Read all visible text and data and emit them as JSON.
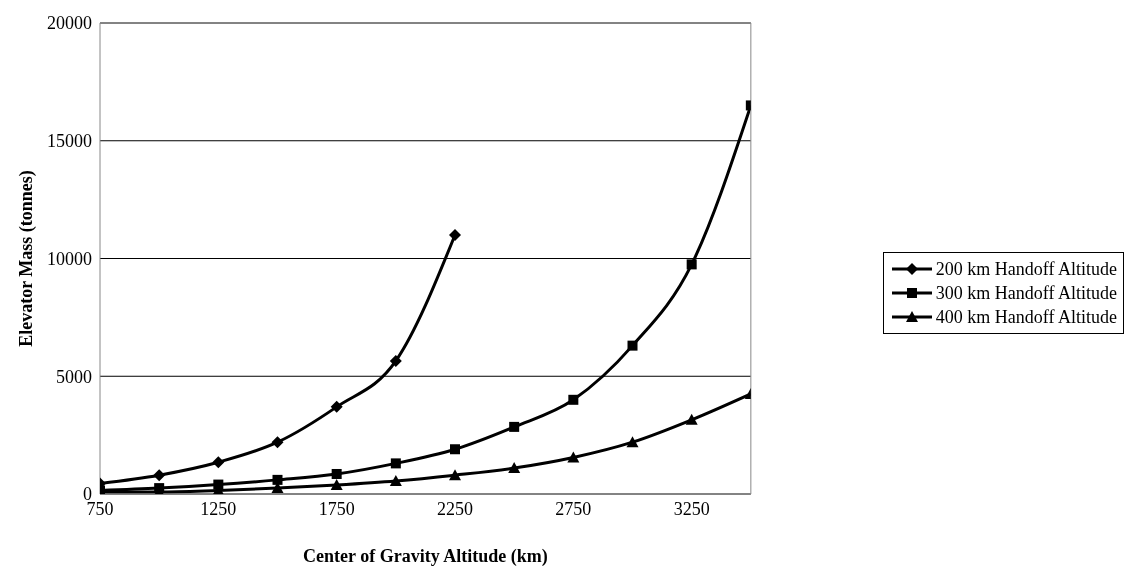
{
  "chart_data": {
    "type": "line",
    "xlabel": "Center of Gravity Altitude (km)",
    "ylabel": "Elevator Mass (tonnes)",
    "x": [
      750,
      1000,
      1250,
      1500,
      1750,
      2000,
      2250,
      2500,
      2750,
      3000,
      3250,
      3500
    ],
    "series": [
      {
        "name": "200 km Handoff Altitude",
        "color": "#000000",
        "marker": "diamond",
        "values": [
          450,
          800,
          1350,
          2200,
          3700,
          5650,
          11000,
          null,
          null,
          null,
          null,
          null
        ]
      },
      {
        "name": "300 km Handoff Altitude",
        "color": "#000000",
        "marker": "square",
        "values": [
          150,
          250,
          400,
          600,
          850,
          1300,
          1900,
          2850,
          4000,
          6300,
          9750,
          16500
        ]
      },
      {
        "name": "400 km Handoff Altitude",
        "color": "#000000",
        "marker": "triangle",
        "values": [
          80,
          80,
          150,
          250,
          380,
          550,
          800,
          1100,
          1550,
          2200,
          3150,
          4250
        ]
      }
    ],
    "xlim": [
      750,
      3500
    ],
    "xticks": [
      750,
      1250,
      1750,
      2250,
      2750,
      3250
    ],
    "ylim": [
      0,
      20000
    ],
    "yticks": [
      0,
      5000,
      10000,
      15000,
      20000
    ],
    "grid": "y",
    "legend": "right",
    "line_style": "solid"
  }
}
